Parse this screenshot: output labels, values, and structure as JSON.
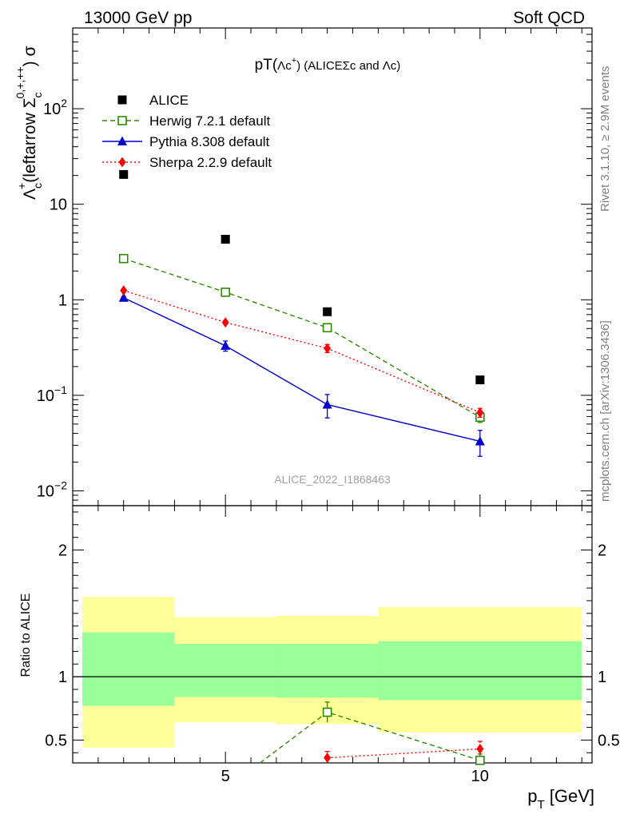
{
  "header": {
    "left": "13000 GeV pp",
    "right": "Soft QCD"
  },
  "side_text": {
    "rivet": "Rivet 3.1.10, ≥ 2.9M events",
    "mcplots": "mcplots.cern.ch [arXiv:1306.3436]"
  },
  "colors": {
    "alice": "#000000",
    "herwig": "#2e8b00",
    "pythia": "#0000cc",
    "sherpa": "#ff0000",
    "band_inner": "#99ff99",
    "band_outer": "#ffff99"
  },
  "chart_data": [
    {
      "type": "scatter",
      "title": "pT(Λc⁺) (ALICEΣc and Λc)",
      "title_parts": {
        "a": "pT(",
        "b": "Λc",
        "c": "+",
        "d": ") (ALICEΣc and Λc)"
      },
      "ylabel": "Λ_c^+(leftarrow Σ_c^{0,+,++}) σ",
      "ylabel_parts": {
        "lambda": "Λ",
        "c_sub": "c",
        "plus_sup": "+",
        "middle": "(leftarrow Σ",
        "sigma_sub": "c",
        "sigma_sup": "0,+,++",
        "end": ") σ"
      },
      "watermark": "ALICE_2022_I1868463",
      "xlim": [
        2.0,
        12.2
      ],
      "ylim": [
        0.007,
        700
      ],
      "yscale": "log",
      "y_ticks": [
        {
          "value": 0.01,
          "base": "10",
          "exp": "−2"
        },
        {
          "value": 0.1,
          "base": "10",
          "exp": "−1"
        },
        {
          "value": 1,
          "base": "1",
          "exp": ""
        },
        {
          "value": 10,
          "base": "10",
          "exp": ""
        },
        {
          "value": 100,
          "base": "10",
          "exp": "2"
        }
      ],
      "legend_position": "top-left",
      "series": [
        {
          "name": "ALICE",
          "marker": "square-filled",
          "line": "none",
          "x": [
            3,
            5,
            7,
            10
          ],
          "y": [
            20.5,
            4.3,
            0.75,
            0.145
          ]
        },
        {
          "name": "Herwig 7.2.1 default",
          "marker": "square-open",
          "line": "dashed",
          "x": [
            3,
            5,
            7,
            10
          ],
          "y": [
            2.7,
            1.2,
            0.51,
            0.059
          ],
          "err": [
            0.05,
            0.05,
            0.03,
            0.007
          ]
        },
        {
          "name": "Pythia 8.308 default",
          "marker": "triangle-filled",
          "line": "solid",
          "x": [
            3,
            5,
            7,
            10
          ],
          "y": [
            1.05,
            0.33,
            0.08,
            0.033
          ],
          "err": [
            0.03,
            0.04,
            0.022,
            0.01
          ]
        },
        {
          "name": "Sherpa 2.2.9 default",
          "marker": "diamond-filled",
          "line": "dotted",
          "x": [
            3,
            5,
            7,
            10
          ],
          "y": [
            1.25,
            0.58,
            0.31,
            0.066
          ],
          "err": [
            0.03,
            0.02,
            0.03,
            0.007
          ]
        }
      ]
    },
    {
      "type": "scatter",
      "ylabel": "Ratio to ALICE",
      "xlabel_parts": {
        "p": "p",
        "sub": "T",
        "rest": " [GeV]"
      },
      "xlim": [
        2.0,
        12.2
      ],
      "ylim": [
        0.32,
        2.35
      ],
      "x_ticks": [
        {
          "value": 5,
          "label": "5"
        },
        {
          "value": 10,
          "label": "10"
        }
      ],
      "y_ticks": [
        {
          "value": 0.5,
          "label": "0.5"
        },
        {
          "value": 1,
          "label": "1"
        },
        {
          "value": 2,
          "label": "2"
        }
      ],
      "bands": [
        {
          "x0": 2,
          "x1": 4,
          "inner": [
            0.77,
            1.35
          ],
          "outer": [
            0.44,
            1.63
          ]
        },
        {
          "x0": 4,
          "x1": 6,
          "inner": [
            0.84,
            1.26
          ],
          "outer": [
            0.64,
            1.47
          ]
        },
        {
          "x0": 6,
          "x1": 8,
          "inner": [
            0.835,
            1.26
          ],
          "outer": [
            0.625,
            1.48
          ]
        },
        {
          "x0": 8,
          "x1": 12,
          "inner": [
            0.815,
            1.28
          ],
          "outer": [
            0.56,
            1.55
          ]
        }
      ],
      "series": [
        {
          "name": "Herwig 7.2.1 default",
          "marker": "square-open",
          "line": "dashed",
          "x": [
            5.68,
            7,
            10
          ],
          "y": [
            0.32,
            0.72,
            0.34
          ],
          "err": [
            0,
            0.08,
            0.05
          ],
          "show_marker": [
            false,
            true,
            true
          ]
        },
        {
          "name": "Sherpa 2.2.9 default",
          "marker": "diamond-filled",
          "line": "dotted",
          "x": [
            7,
            10
          ],
          "y": [
            0.36,
            0.43
          ],
          "err": [
            0.05,
            0.06
          ],
          "show_marker": [
            true,
            true
          ]
        }
      ]
    }
  ]
}
